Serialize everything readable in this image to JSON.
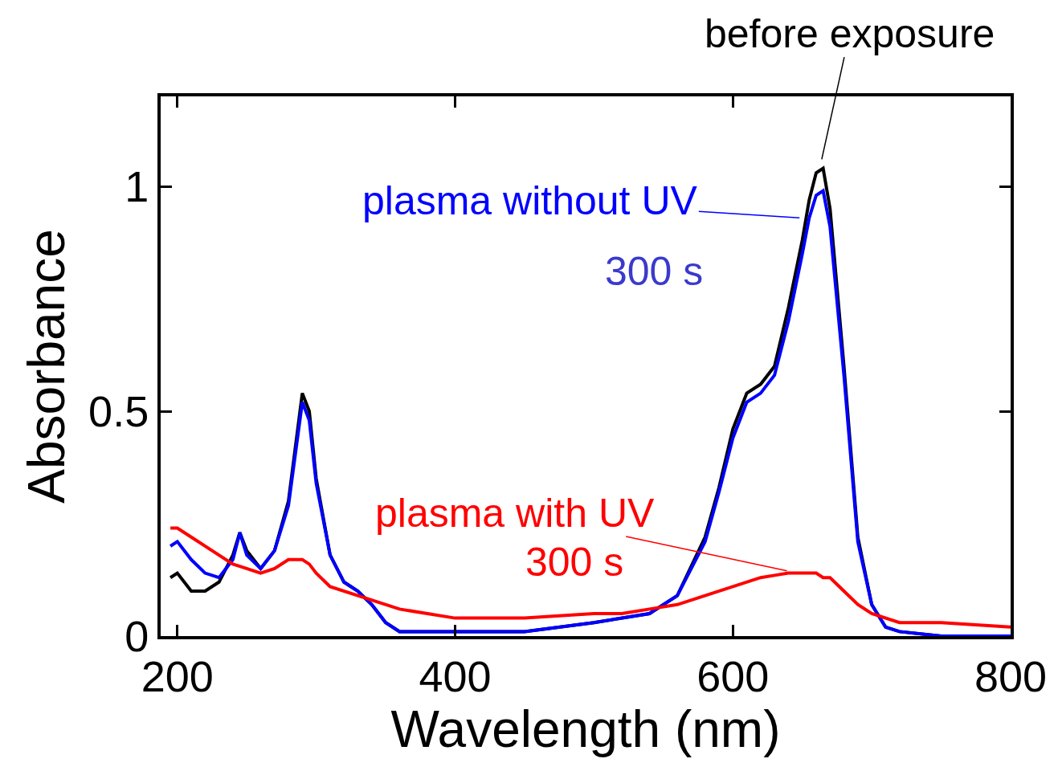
{
  "chart_data": {
    "type": "line",
    "x_label": "Wavelength (nm)",
    "y_label": "Absorbance",
    "x": [
      195,
      200,
      210,
      220,
      230,
      240,
      245,
      250,
      260,
      270,
      280,
      285,
      290,
      295,
      300,
      310,
      320,
      330,
      340,
      350,
      360,
      400,
      450,
      500,
      520,
      540,
      560,
      580,
      590,
      600,
      610,
      620,
      630,
      640,
      650,
      655,
      660,
      665,
      670,
      680,
      690,
      700,
      710,
      720,
      750,
      800
    ],
    "series": [
      {
        "name": "before exposure",
        "color": "#000000",
        "values": [
          0.13,
          0.14,
          0.1,
          0.1,
          0.12,
          0.18,
          0.23,
          0.19,
          0.15,
          0.19,
          0.3,
          0.42,
          0.54,
          0.5,
          0.35,
          0.18,
          0.12,
          0.1,
          0.07,
          0.03,
          0.01,
          0.01,
          0.01,
          0.03,
          0.04,
          0.05,
          0.09,
          0.22,
          0.33,
          0.46,
          0.54,
          0.56,
          0.6,
          0.73,
          0.88,
          0.97,
          1.03,
          1.04,
          0.95,
          0.6,
          0.22,
          0.07,
          0.02,
          0.01,
          0.0,
          0.0
        ]
      },
      {
        "name": "plasma without UV",
        "color": "#0000ff",
        "values": [
          0.2,
          0.21,
          0.17,
          0.14,
          0.13,
          0.17,
          0.23,
          0.18,
          0.15,
          0.19,
          0.29,
          0.41,
          0.52,
          0.48,
          0.34,
          0.18,
          0.12,
          0.1,
          0.07,
          0.03,
          0.01,
          0.01,
          0.01,
          0.03,
          0.04,
          0.05,
          0.09,
          0.21,
          0.32,
          0.44,
          0.52,
          0.54,
          0.58,
          0.7,
          0.85,
          0.93,
          0.98,
          0.99,
          0.91,
          0.58,
          0.21,
          0.07,
          0.02,
          0.01,
          0.0,
          0.0
        ]
      },
      {
        "name": "plasma with UV",
        "color": "#ff0000",
        "values": [
          0.24,
          0.24,
          0.22,
          0.2,
          0.18,
          0.16,
          0.155,
          0.15,
          0.14,
          0.15,
          0.17,
          0.17,
          0.17,
          0.16,
          0.14,
          0.11,
          0.1,
          0.09,
          0.08,
          0.07,
          0.06,
          0.04,
          0.04,
          0.05,
          0.05,
          0.06,
          0.07,
          0.09,
          0.1,
          0.11,
          0.12,
          0.13,
          0.135,
          0.14,
          0.14,
          0.14,
          0.14,
          0.13,
          0.13,
          0.1,
          0.07,
          0.05,
          0.04,
          0.03,
          0.03,
          0.02
        ]
      }
    ],
    "annotations": [
      {
        "text": "before exposure",
        "x": 684,
        "y": 1.34,
        "color": "#000000",
        "arrow_to": [
          664,
          1.06
        ]
      },
      {
        "text": "plasma without UV",
        "x": 454,
        "y": 0.968,
        "color": "#0000ff",
        "arrow_to": [
          648,
          0.93
        ]
      },
      {
        "text": "300 s",
        "x": 543,
        "y": 0.81,
        "color": "#3a3acc"
      },
      {
        "text": "plasma with UV",
        "x": 443,
        "y": 0.274,
        "color": "#ff0000",
        "arrow_to": [
          639,
          0.145
        ]
      },
      {
        "text": "300 s",
        "x": 486,
        "y": 0.164,
        "color": "#ff0000"
      }
    ],
    "xlim": [
      188,
      800
    ],
    "ylim": [
      0,
      1.2
    ],
    "xticks": [
      200,
      400,
      600,
      800
    ],
    "yticks": [
      0,
      0.5,
      1
    ],
    "grid": false
  }
}
